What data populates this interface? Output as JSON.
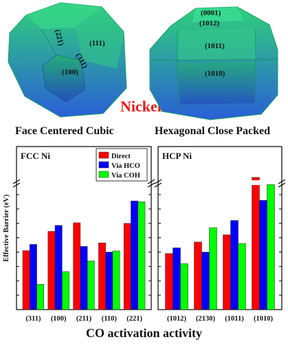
{
  "illustration": {
    "material_label": "Nickel",
    "fcc_facets": [
      "(221)",
      "(111)",
      "(311)",
      "(100)"
    ],
    "hcp_facets": [
      "(0001)",
      "(1012)",
      "(1011)",
      "(1010)"
    ],
    "fcc_caption": "Face Centered Cubic",
    "hcp_caption": "Hexagonal Close Packed",
    "colors": {
      "crystal_top": "#2fd17a",
      "crystal_bottom": "#2a5fd6",
      "nickel_text": "#e41a1c"
    }
  },
  "chart_data": [
    {
      "type": "bar",
      "title": "FCC Ni",
      "categories": [
        "(311)",
        "(100)",
        "(211)",
        "(110)",
        "(221)"
      ],
      "series": [
        {
          "name": "Direct",
          "color": "#ff0000",
          "values": [
            2.05,
            2.72,
            3.02,
            2.32,
            3.0
          ]
        },
        {
          "name": "Via HCO",
          "color": "#0000ff",
          "values": [
            2.27,
            2.93,
            2.2,
            2.0,
            3.78
          ]
        },
        {
          "name": "Via COH",
          "color": "#00ff00",
          "values": [
            0.88,
            1.32,
            1.69,
            2.04,
            3.75
          ]
        }
      ],
      "ylabel": "Effective Barrier (eV)",
      "xlabel": "CO activation activity",
      "axis_break": true,
      "legend": "top-center"
    },
    {
      "type": "bar",
      "title": "HCP Ni",
      "categories": [
        "(1012)",
        "(2130)",
        "(1011)",
        "(1010)"
      ],
      "series": [
        {
          "name": "Direct",
          "color": "#ff0000",
          "values": [
            1.95,
            2.35,
            2.6,
            4.6
          ]
        },
        {
          "name": "Via HCO",
          "color": "#0000ff",
          "values": [
            2.15,
            2.0,
            3.1,
            3.8
          ]
        },
        {
          "name": "Via COH",
          "color": "#00ff00",
          "values": [
            1.6,
            2.85,
            2.3,
            4.35
          ]
        }
      ],
      "axis_break": true
    }
  ]
}
